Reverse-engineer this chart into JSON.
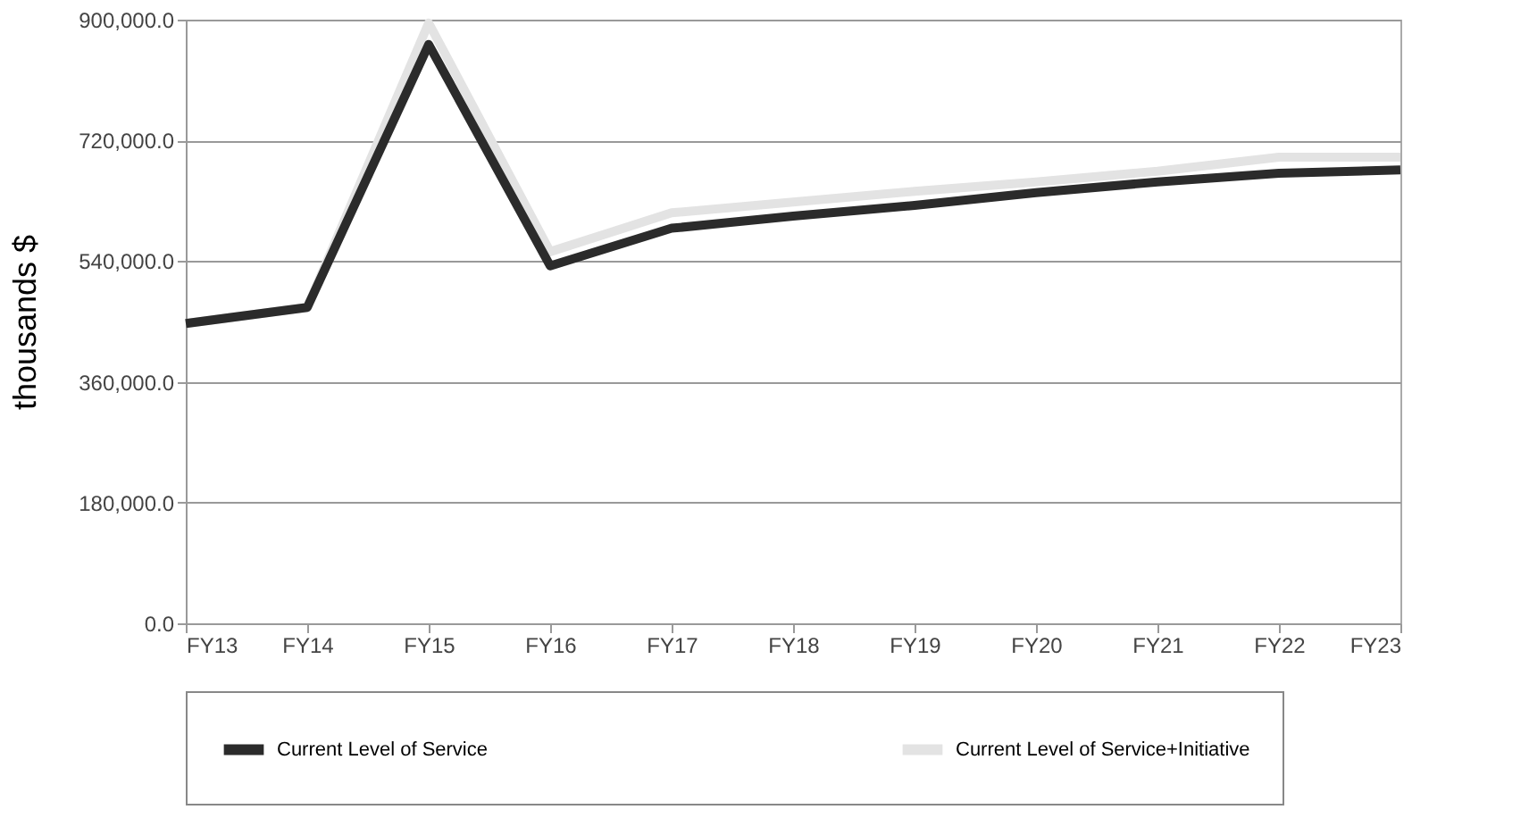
{
  "chart_data": {
    "type": "line",
    "ylabel": "thousands $",
    "categories": [
      "FY13",
      "FY14",
      "FY15",
      "FY16",
      "FY17",
      "FY18",
      "FY19",
      "FY20",
      "FY21",
      "FY22",
      "FY23"
    ],
    "series": [
      {
        "name": "Current Level of Service+Initiative",
        "color": "#e3e3e3",
        "values": [
          447000,
          471000,
          895000,
          554000,
          612000,
          628000,
          644000,
          658000,
          674000,
          695000,
          695000
        ]
      },
      {
        "name": "Current Level of Service",
        "color": "#2b2b2b",
        "values": [
          447000,
          471000,
          863000,
          533000,
          589000,
          607000,
          623000,
          642000,
          658000,
          671000,
          676000
        ]
      }
    ],
    "ylim": [
      0,
      900000
    ],
    "yticks": [
      {
        "value": 0,
        "label": "0.0"
      },
      {
        "value": 180000,
        "label": "180,000.0"
      },
      {
        "value": 360000,
        "label": "360,000.0"
      },
      {
        "value": 540000,
        "label": "540,000.0"
      },
      {
        "value": 720000,
        "label": "720,000.0"
      },
      {
        "value": 900000,
        "label": "900,000.0"
      }
    ],
    "grid": "y",
    "legend": "bottom",
    "marker": "none",
    "line_style": "solid"
  }
}
